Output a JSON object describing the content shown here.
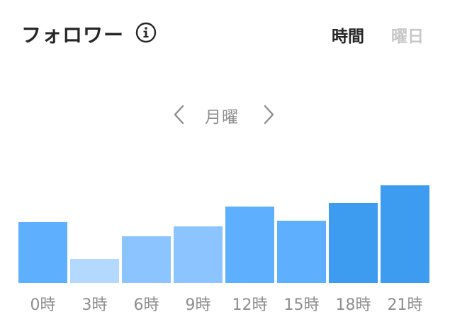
{
  "header": {
    "title": "フォロワー",
    "tabs": [
      {
        "label": "時間",
        "active": true
      },
      {
        "label": "曜日",
        "active": false
      }
    ],
    "info_icon": "info-icon"
  },
  "day_selector": {
    "label": "月曜",
    "prev_icon": "chevron-left-icon",
    "next_icon": "chevron-right-icon"
  },
  "colors": {
    "bar_light": "#b3d9ff",
    "bar_lighter": "#8cc4ff",
    "bar_mid": "#5eb0ff",
    "bar_dark": "#3d9bf0",
    "label": "#8e8e8e"
  },
  "chart_data": {
    "type": "bar",
    "categories": [
      "0時",
      "3時",
      "6時",
      "9時",
      "12時",
      "15時",
      "18時",
      "21時"
    ],
    "values": [
      86,
      34,
      66,
      80,
      108,
      88,
      113,
      138
    ],
    "levels": [
      "mid",
      "light",
      "lighter",
      "lighter",
      "mid",
      "mid",
      "dark",
      "dark"
    ],
    "title": "",
    "xlabel": "",
    "ylabel": "",
    "ylim": [
      0,
      138
    ],
    "grid": false
  }
}
